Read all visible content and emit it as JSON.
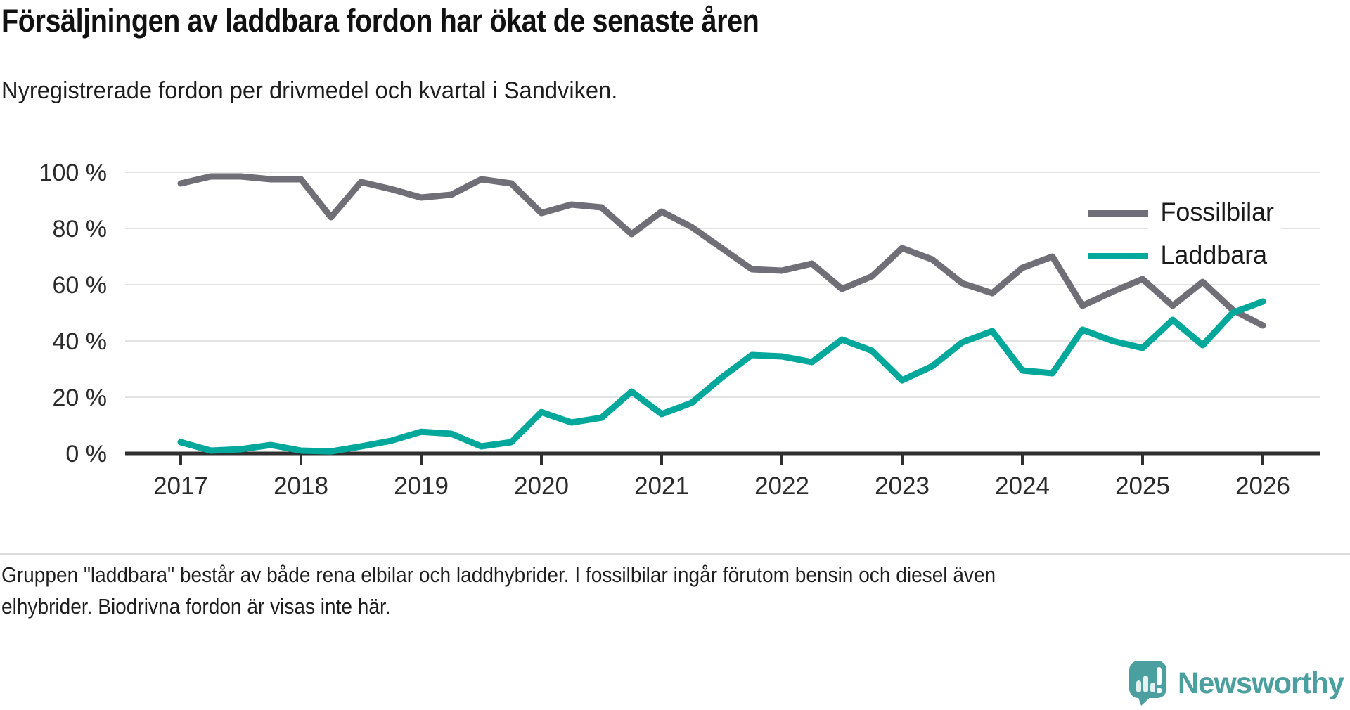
{
  "title": "Försäljningen av laddbara fordon har ökat de senaste åren",
  "subtitle": "Nyregistrerade fordon per drivmedel och kvartal i Sandviken.",
  "legend": {
    "items": [
      {
        "label": "Fossilbilar",
        "color": "#706f78"
      },
      {
        "label": "Laddbara",
        "color": "#00a79b"
      }
    ]
  },
  "footnote": {
    "line1": "Gruppen \"laddbara\" består av både rena elbilar och laddhybrider. I fossilbilar ingår förutom bensin och diesel även",
    "line2": "elhybrider. Biodrivna fordon är visas inte här."
  },
  "logo": {
    "text": "Newsworthy",
    "color": "#4b9f9e"
  },
  "chart_data": {
    "type": "line",
    "title": "Försäljningen av laddbara fordon har ökat de senaste åren",
    "subtitle": "Nyregistrerade fordon per drivmedel och kvartal i Sandviken.",
    "unit": "percent",
    "x": [
      "2017-K1",
      "2017-K2",
      "2017-K3",
      "2017-K4",
      "2018-K1",
      "2018-K2",
      "2018-K3",
      "2018-K4",
      "2019-K1",
      "2019-K2",
      "2019-K3",
      "2019-K4",
      "2020-K1",
      "2020-K2",
      "2020-K3",
      "2020-K4",
      "2021-K1",
      "2021-K2",
      "2021-K3",
      "2021-K4",
      "2022-K1",
      "2022-K2",
      "2022-K3",
      "2022-K4",
      "2023-K1",
      "2023-K2",
      "2023-K3",
      "2023-K4",
      "2024-K1",
      "2024-K2",
      "2024-K3",
      "2024-K4",
      "2025-K1",
      "2025-K2",
      "2025-K3",
      "2025-K4",
      "2026-K1"
    ],
    "x_tick_years": [
      2017,
      2018,
      2019,
      2020,
      2021,
      2022,
      2023,
      2024,
      2025,
      2026
    ],
    "series": [
      {
        "name": "Fossilbilar",
        "color": "#706f78",
        "values": [
          96,
          98.5,
          98.5,
          97.5,
          97.5,
          84,
          96.5,
          94,
          91,
          92,
          97.5,
          96,
          85.5,
          88.5,
          87.5,
          78,
          86,
          80.5,
          73,
          65.5,
          65,
          67.5,
          58.5,
          63,
          73,
          69,
          60.5,
          57,
          66,
          70,
          52.5,
          57.5,
          62,
          52.5,
          61,
          51,
          45.5
        ]
      },
      {
        "name": "Laddbara",
        "color": "#00a79b",
        "values": [
          4,
          1,
          1.5,
          3,
          1,
          0.7,
          2.5,
          4.5,
          7.7,
          7,
          2.5,
          4,
          14.7,
          11,
          12.7,
          22,
          14,
          18,
          27,
          35,
          34.5,
          32.5,
          40.5,
          36.5,
          26,
          31,
          39.5,
          43.5,
          29.5,
          28.5,
          44,
          40,
          37.5,
          47.5,
          38.5,
          50,
          54
        ]
      }
    ],
    "ylim": [
      0,
      100
    ],
    "ytick_values": [
      0,
      20,
      40,
      60,
      80,
      100
    ],
    "ytick_labels": [
      "0 %",
      "20 %",
      "40 %",
      "60 %",
      "80 %",
      "100 %"
    ],
    "grid": "horizontal",
    "legend_position": "top-right"
  }
}
